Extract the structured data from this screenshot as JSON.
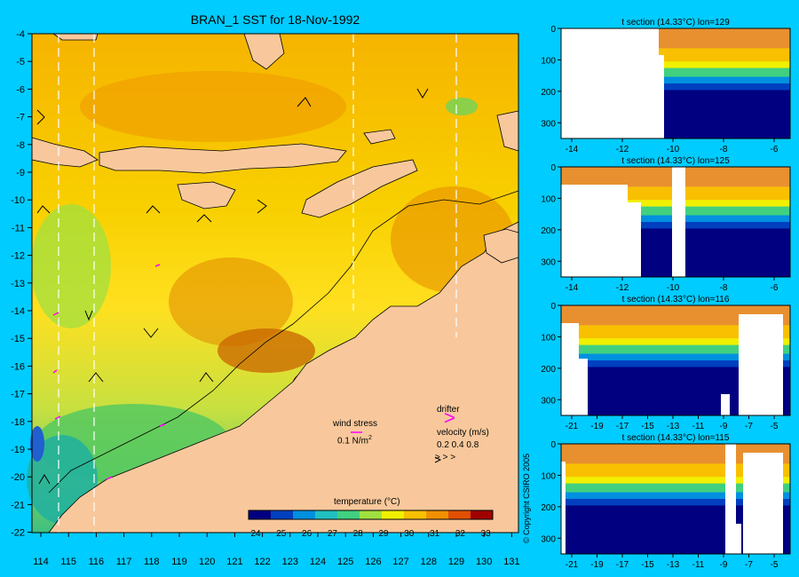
{
  "title": "BRAN_1 SST for 18-Nov-1992",
  "map": {
    "lon_ticks": [
      "114",
      "115",
      "116",
      "117",
      "118",
      "119",
      "120",
      "121",
      "122",
      "123",
      "124",
      "125",
      "126",
      "127",
      "128",
      "129",
      "130",
      "131"
    ],
    "lat_ticks": [
      "-4",
      "-5",
      "-6",
      "-7",
      "-8",
      "-9",
      "-10",
      "-11",
      "-12",
      "-13",
      "-14",
      "-15",
      "-16",
      "-17",
      "-18",
      "-19",
      "-20",
      "-21",
      "-22"
    ],
    "section_lines_lon": [
      114.5,
      115.8,
      125.5,
      129.2
    ],
    "wind_stress_label": "wind stress",
    "wind_stress_scale": "0.1 N/m",
    "wind_stress_superscript": "2",
    "drifter_label": "drifter",
    "drifter_symbol": ">",
    "velocity_label": "velocity (m/s)",
    "velocity_scale": "0.2 0.4 0.8",
    "velocity_arrows": "> > >",
    "colors": {
      "land": "#f8c89c",
      "warm": "#f0a000",
      "hot": "#c86400",
      "mid": "#ffe000",
      "cool": "#a0e040",
      "cold": "#20c080"
    }
  },
  "colorbar": {
    "title": "temperature (°C)",
    "ticks": [
      "24",
      "25",
      "26",
      "27",
      "28",
      "29",
      "30",
      "31",
      "32",
      "33"
    ],
    "colors": [
      "#000080",
      "#0040c0",
      "#0090e0",
      "#20c0c0",
      "#40d080",
      "#a0e040",
      "#f0f000",
      "#f8c000",
      "#f09000",
      "#e05000",
      "#a00000"
    ]
  },
  "sections": [
    {
      "title": "t section (14.33°C) lon=129",
      "x_ticks": [
        "-14",
        "-12",
        "-10",
        "-8",
        "-6"
      ],
      "y_ticks": [
        "0",
        "100",
        "200",
        "300"
      ]
    },
    {
      "title": "t section (14.33°C) lon=125",
      "x_ticks": [
        "-14",
        "-12",
        "-10",
        "-8",
        "-6"
      ],
      "y_ticks": [
        "0",
        "100",
        "200",
        "300"
      ]
    },
    {
      "title": "t section (14.33°C) lon=116",
      "x_ticks": [
        "-21",
        "-19",
        "-17",
        "-15",
        "-13",
        "-11",
        "-9",
        "-7",
        "-5"
      ],
      "y_ticks": [
        "0",
        "100",
        "200",
        "300"
      ]
    },
    {
      "title": "t section (14.33°C) lon=115",
      "x_ticks": [
        "-21",
        "-19",
        "-17",
        "-15",
        "-13",
        "-11",
        "-9",
        "-7",
        "-5"
      ],
      "y_ticks": [
        "0",
        "100",
        "200",
        "300"
      ]
    }
  ],
  "copyright": "© Copyright CSIRO 2005"
}
